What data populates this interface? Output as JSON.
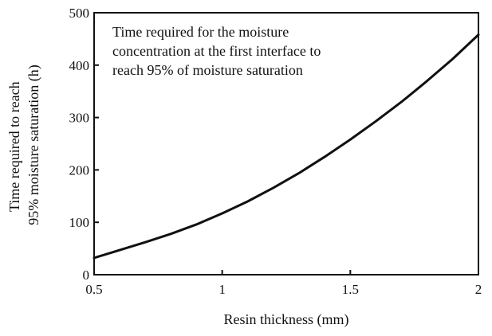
{
  "chart_data": {
    "type": "line",
    "title": "",
    "annotation_lines": [
      "Time required for the moisture",
      "concentration at the first interface to",
      "reach 95% of moisture saturation"
    ],
    "xlabel": "Resin thickness  (mm)",
    "ylabel_lines": [
      "Time required to reach",
      "95% moisture saturation  (h)"
    ],
    "xlim": [
      0.5,
      2
    ],
    "ylim": [
      0,
      500
    ],
    "x_ticks": [
      0.5,
      1,
      1.5,
      2
    ],
    "y_ticks": [
      0,
      100,
      200,
      300,
      400,
      500
    ],
    "x_tick_labels": [
      "0.5",
      "1",
      "1.5",
      "2"
    ],
    "y_tick_labels": [
      "0",
      "100",
      "200",
      "300",
      "400",
      "500"
    ],
    "grid": false,
    "series": [
      {
        "x": [
          0.5,
          0.6,
          0.7,
          0.8,
          0.9,
          1.0,
          1.1,
          1.2,
          1.3,
          1.4,
          1.5,
          1.6,
          1.7,
          1.8,
          1.9,
          2.0
        ],
        "y": [
          32,
          47,
          62,
          78,
          96,
          117,
          140,
          166,
          194,
          225,
          258,
          293,
          330,
          370,
          412,
          458
        ]
      }
    ],
    "colors": {
      "line": "#111111",
      "axes": "#111111",
      "background": "#ffffff"
    }
  }
}
